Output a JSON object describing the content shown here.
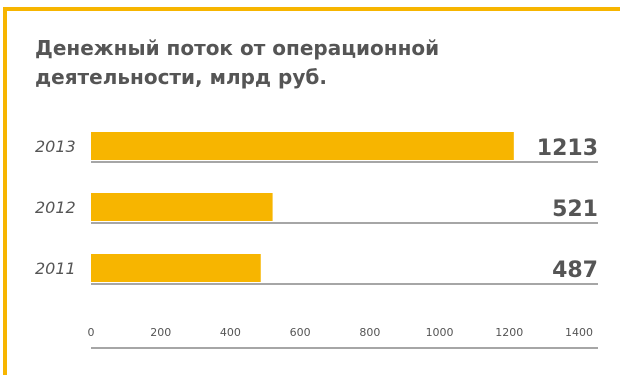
{
  "chart_data": {
    "type": "bar",
    "orientation": "horizontal",
    "title": "Денежный поток от операционной деятельности, млрд руб.",
    "categories": [
      "2013",
      "2012",
      "2011"
    ],
    "values": [
      1213,
      521,
      487
    ],
    "value_labels": [
      "1213",
      "521",
      "487"
    ],
    "xlim": [
      0,
      1400
    ],
    "xticks": [
      "0",
      "200",
      "400",
      "600",
      "800",
      "1000",
      "1200",
      "1400"
    ],
    "grid": false,
    "legend": "none",
    "colors": {
      "bar": "#f7b500",
      "accent_border": "#f7b500",
      "text": "#555555",
      "axis": "#4d4d4d"
    }
  }
}
